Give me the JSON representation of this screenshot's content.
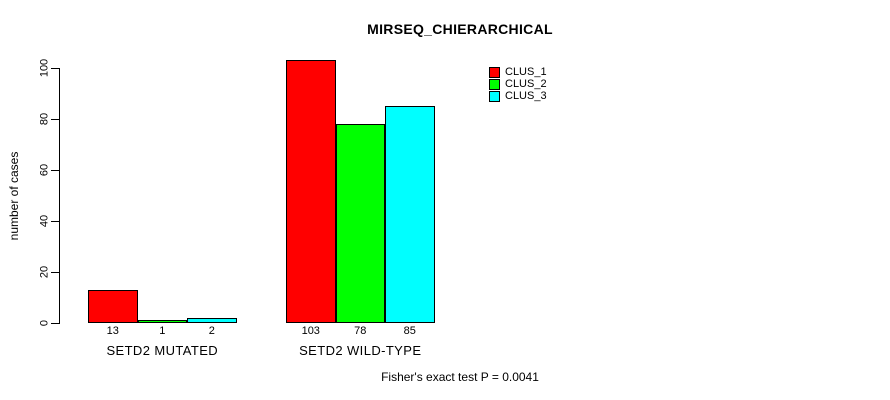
{
  "chart_data": {
    "type": "bar",
    "title": "MIRSEQ_CHIERARCHICAL",
    "ylabel": "number of cases",
    "xlabel": "",
    "categories": [
      "SETD2 MUTATED",
      "SETD2 WILD-TYPE"
    ],
    "series": [
      {
        "name": "CLUS_1",
        "color": "#ff0000",
        "values": [
          13,
          103
        ]
      },
      {
        "name": "CLUS_2",
        "color": "#00ff00",
        "values": [
          1,
          78
        ]
      },
      {
        "name": "CLUS_3",
        "color": "#00ffff",
        "values": [
          2,
          85
        ]
      }
    ],
    "ylim": [
      0,
      100
    ],
    "yticks": [
      0,
      20,
      40,
      60,
      80,
      100
    ],
    "grid": false,
    "bar_value_labels": true,
    "legend_position": "top-right-inside",
    "annotation": "Fisher's exact test P = 0.0041",
    "bar_border_color": "#000000",
    "background_color": "#ffffff"
  }
}
